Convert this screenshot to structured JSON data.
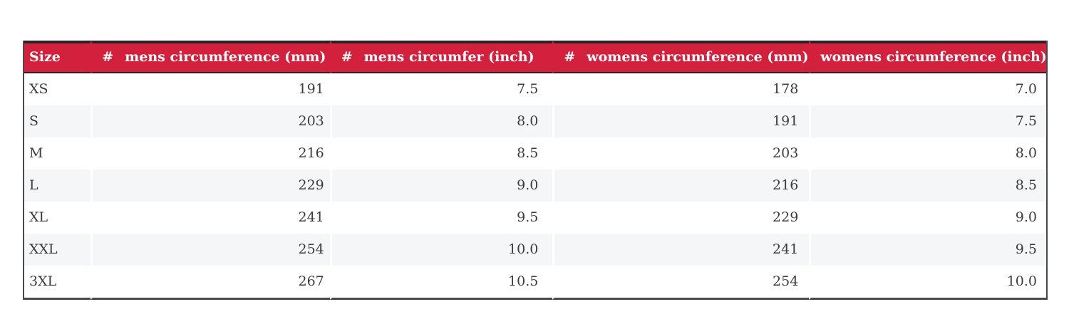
{
  "chart_data": {
    "type": "table",
    "title": "",
    "columns": [
      "Size",
      "# mens circumference (mm)",
      "# mens circumfer (inch)",
      "# womens circumference (mm)",
      "womens circumference (inch)"
    ],
    "rows": [
      [
        "XS",
        "191",
        "7.5",
        "178",
        "7.0"
      ],
      [
        "S",
        "203",
        "8.0",
        "191",
        "7.5"
      ],
      [
        "M",
        "216",
        "8.5",
        "203",
        "8.0"
      ],
      [
        "L",
        "229",
        "9.0",
        "216",
        "8.5"
      ],
      [
        "XL",
        "241",
        "9.5",
        "229",
        "9.0"
      ],
      [
        "XXL",
        "254",
        "10.0",
        "241",
        "9.5"
      ],
      [
        "3XL",
        "267",
        "10.5",
        "254",
        "10.0"
      ]
    ]
  },
  "table": {
    "header": [
      {
        "hash": "",
        "label": "Size"
      },
      {
        "hash": "#",
        "label": "mens circumference (mm)"
      },
      {
        "hash": "#",
        "label": "mens circumfer (inch)"
      },
      {
        "hash": "#",
        "label": "womens circumference (mm)"
      },
      {
        "hash": "",
        "label": "womens circumference (inch)"
      }
    ],
    "rows": [
      {
        "size": "XS",
        "mens_mm": "191",
        "mens_inch": "7.5",
        "womens_mm": "178",
        "womens_inch": "7.0"
      },
      {
        "size": "S",
        "mens_mm": "203",
        "mens_inch": "8.0",
        "womens_mm": "191",
        "womens_inch": "7.5"
      },
      {
        "size": "M",
        "mens_mm": "216",
        "mens_inch": "8.5",
        "womens_mm": "203",
        "womens_inch": "8.0"
      },
      {
        "size": "L",
        "mens_mm": "229",
        "mens_inch": "9.0",
        "womens_mm": "216",
        "womens_inch": "8.5"
      },
      {
        "size": "XL",
        "mens_mm": "241",
        "mens_inch": "9.5",
        "womens_mm": "229",
        "womens_inch": "9.0"
      },
      {
        "size": "XXL",
        "mens_mm": "254",
        "mens_inch": "10.0",
        "womens_mm": "241",
        "womens_inch": "9.5"
      },
      {
        "size": "3XL",
        "mens_mm": "267",
        "mens_inch": "10.5",
        "womens_mm": "254",
        "womens_inch": "10.0"
      }
    ]
  },
  "colors": {
    "header_bg": "#d3203c",
    "header_text": "#ffffff",
    "row_alt_bg": "#f5f6f8",
    "body_text": "#3c3c3c",
    "border_dark": "#2c2327",
    "border_gray": "#4a4a4a"
  }
}
